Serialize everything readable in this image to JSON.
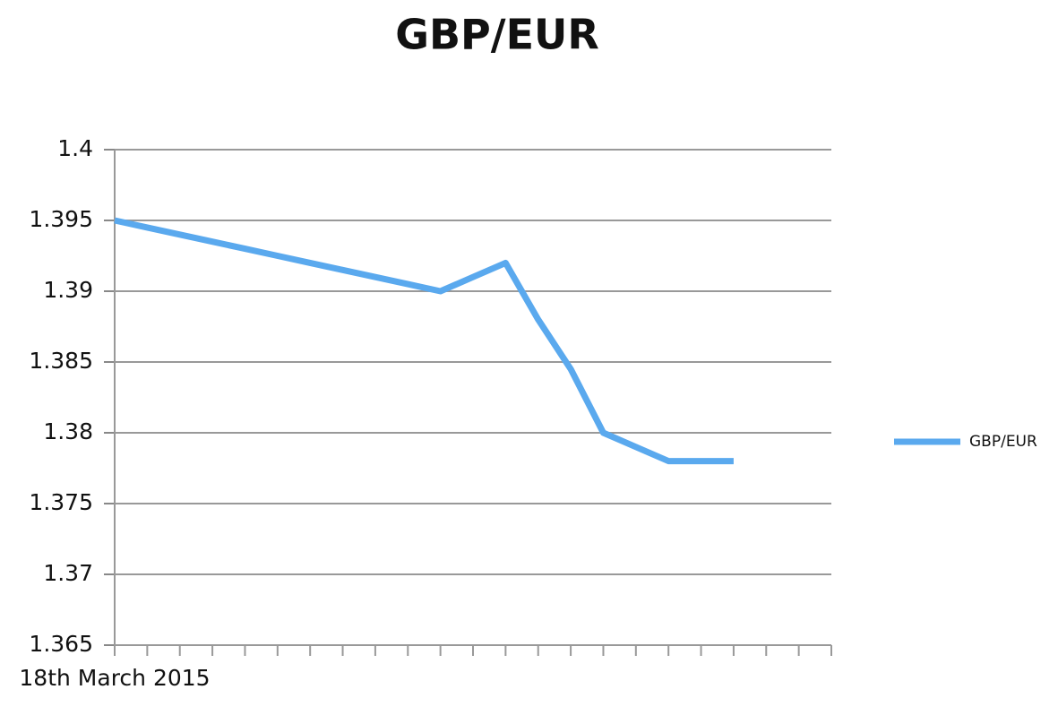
{
  "chart_data": {
    "type": "line",
    "title": "GBP/EUR",
    "categories": [
      "18th March 2015",
      null,
      null,
      null,
      null,
      null,
      null,
      null,
      null,
      null,
      null,
      null,
      null,
      null,
      null,
      null,
      null,
      null,
      null,
      null,
      null,
      null,
      null
    ],
    "series": [
      {
        "name": "GBP/EUR",
        "color": "#5aa9ee",
        "values": [
          1.395,
          1.3945,
          1.394,
          1.3935,
          1.393,
          1.3925,
          1.392,
          1.3915,
          1.391,
          1.3905,
          1.39,
          1.391,
          1.392,
          1.388,
          1.3845,
          1.38,
          1.379,
          1.378,
          1.378,
          1.378,
          null,
          null,
          null
        ]
      }
    ],
    "ylim": [
      1.365,
      1.4
    ],
    "yticks": [
      1.365,
      1.37,
      1.375,
      1.38,
      1.385,
      1.39,
      1.395,
      1.4
    ],
    "grid": true,
    "legend": "right"
  }
}
